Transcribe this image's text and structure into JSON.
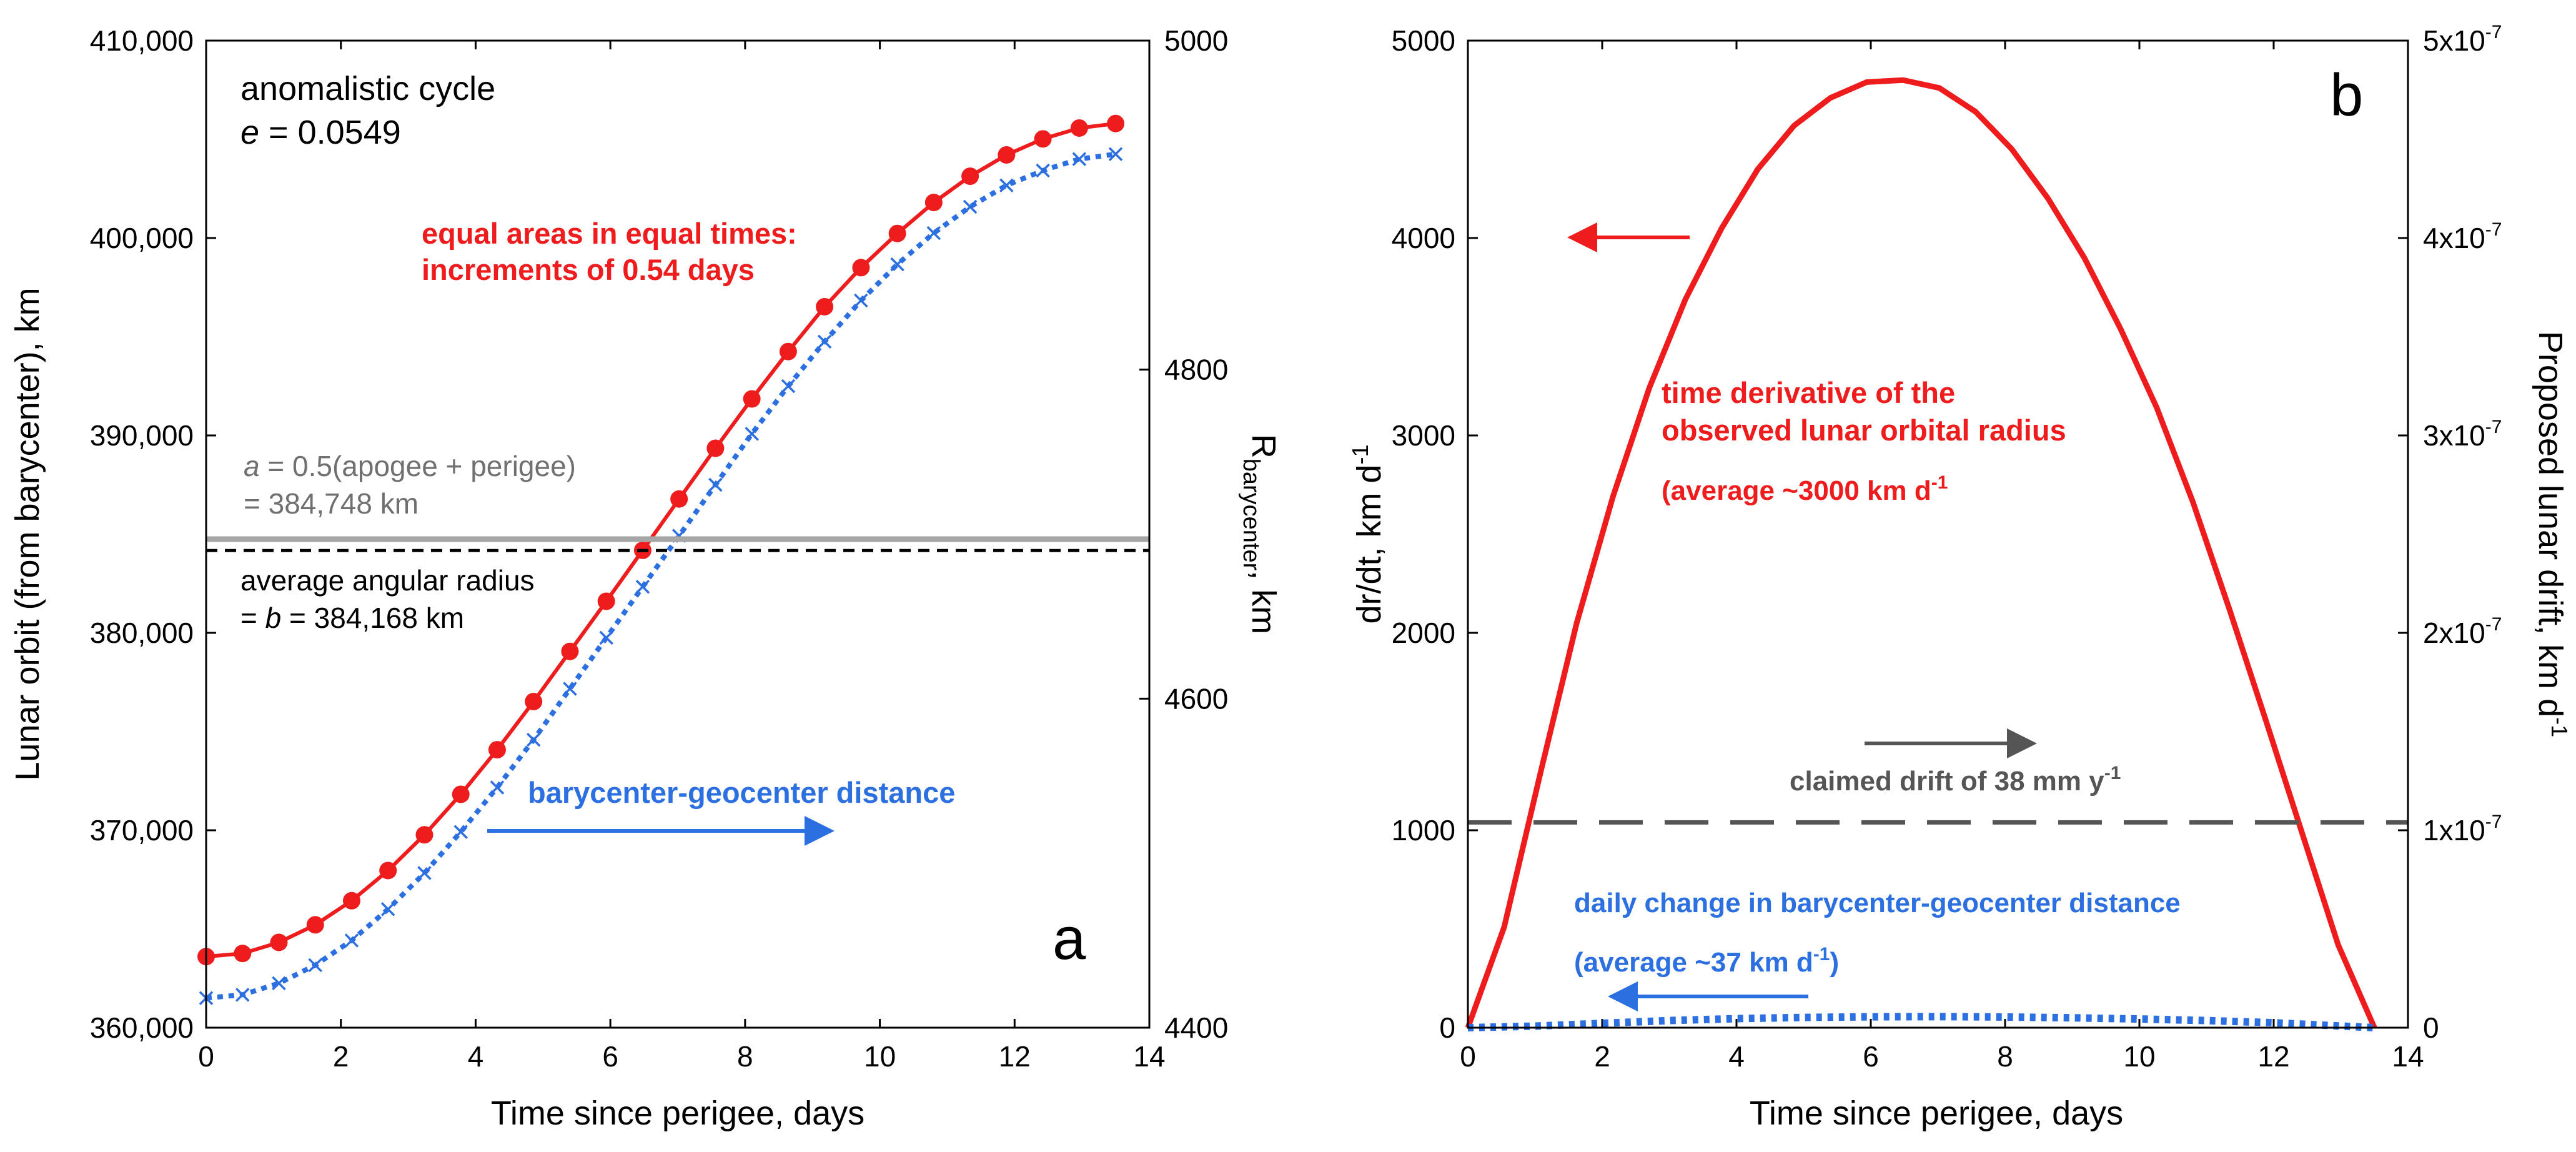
{
  "colors": {
    "red": "#ee1c1c",
    "blue": "#2b6fe0",
    "gray_line": "#a6a6a6",
    "gray_text": "#707070",
    "dark_gray": "#555555",
    "black": "#000000"
  },
  "chart_data": [
    {
      "panel": "a",
      "type": "line",
      "panel_label": "a",
      "xlabel": "Time since perigee, days",
      "ylabel": "Lunar orbit (from barycenter), km",
      "y2label_main": "R",
      "y2label_sub": "barycenter",
      "y2label_tail": ", km",
      "xlim": [
        0,
        14
      ],
      "ylim": [
        360000,
        410000
      ],
      "y2lim": [
        4400,
        5000
      ],
      "x_ticks": [
        0,
        2,
        4,
        6,
        8,
        10,
        12,
        14
      ],
      "x_tick_labels": [
        "0",
        "2",
        "4",
        "6",
        "8",
        "10",
        "12",
        "14"
      ],
      "y_ticks": [
        360000,
        370000,
        380000,
        390000,
        400000,
        410000
      ],
      "y_tick_labels": [
        "360,000",
        "370,000",
        "380,000",
        "390,000",
        "400,000",
        "410,000"
      ],
      "y2_ticks": [
        4400,
        4600,
        4800,
        5000
      ],
      "y2_tick_labels": [
        "4400",
        "4600",
        "4800",
        "5000"
      ],
      "series": [
        {
          "name": "Lunar orbit (equal areas in equal times)",
          "axis": "left",
          "color": "#ee1c1c",
          "style": "line+dots",
          "x": [
            0,
            0.54,
            1.08,
            1.62,
            2.16,
            2.7,
            3.24,
            3.78,
            4.32,
            4.86,
            5.4,
            5.94,
            6.48,
            7.02,
            7.56,
            8.1,
            8.64,
            9.18,
            9.72,
            10.26,
            10.8,
            11.34,
            11.88,
            12.42,
            12.96,
            13.5
          ],
          "values": [
            363600,
            363760,
            364320,
            365210,
            366430,
            367960,
            369770,
            371820,
            374080,
            376520,
            379060,
            381600,
            384180,
            386780,
            389350,
            391850,
            394250,
            396520,
            398500,
            400230,
            401800,
            403130,
            404210,
            405020,
            405570,
            405800
          ]
        },
        {
          "name": "barycenter-geocenter distance",
          "axis": "right",
          "color": "#2b6fe0",
          "style": "dotted+crosses",
          "x": [
            0,
            0.54,
            1.08,
            1.62,
            2.16,
            2.7,
            3.24,
            3.78,
            4.32,
            4.86,
            5.4,
            5.94,
            6.48,
            7.02,
            7.56,
            8.1,
            8.64,
            9.18,
            9.72,
            10.26,
            10.8,
            11.34,
            11.88,
            12.42,
            12.96,
            13.5
          ],
          "values": [
            4418,
            4420,
            4427,
            4438,
            4453,
            4472,
            4494,
            4519,
            4546,
            4575,
            4606,
            4637,
            4668,
            4699,
            4730,
            4761,
            4790,
            4817,
            4842,
            4864,
            4883,
            4899,
            4912,
            4921,
            4928,
            4931
          ]
        },
        {
          "name": "a = 0.5(apogee + perigee)",
          "axis": "left",
          "color": "#a6a6a6",
          "style": "hline",
          "values": [
            384748
          ]
        },
        {
          "name": "average angular radius",
          "axis": "left",
          "color": "#000000",
          "style": "hline-dashed",
          "values": [
            384168
          ]
        }
      ],
      "annotations": {
        "cycle_title": "anomalistic cycle",
        "ecc_symbol": "e",
        "ecc_value": " = 0.0549",
        "equal_areas_line1": "equal areas in equal times:",
        "equal_areas_line2": "increments of 0.54 days",
        "a_symbol": "a",
        "a_formula": " = 0.5(apogee + perigee)",
        "a_value": "= 384,748 km",
        "avg_radius_line1": "average angular radius",
        "avg_radius_prefix": "= ",
        "b_symbol": "b",
        "avg_radius_value": " = 384,168 km",
        "bary_geo_label": "barycenter-geocenter distance"
      }
    },
    {
      "panel": "b",
      "type": "line",
      "panel_label": "b",
      "xlabel": "Time since perigee, days",
      "ylabel": "dr/dt, km d",
      "ylabel_sup": "-1",
      "y2label": "Proposed lunar drift, km d",
      "y2label_sup": "-1",
      "xlim": [
        0,
        14
      ],
      "ylim": [
        0,
        5000
      ],
      "y2lim": [
        0,
        5e-07
      ],
      "x_ticks": [
        0,
        2,
        4,
        6,
        8,
        10,
        12,
        14
      ],
      "x_tick_labels": [
        "0",
        "2",
        "4",
        "6",
        "8",
        "10",
        "12",
        "14"
      ],
      "y_ticks": [
        0,
        1000,
        2000,
        3000,
        4000,
        5000
      ],
      "y_tick_labels": [
        "0",
        "1000",
        "2000",
        "3000",
        "4000",
        "5000"
      ],
      "y2_ticks": [
        0,
        1e-07,
        2e-07,
        3e-07,
        4e-07,
        5e-07
      ],
      "y2_tick_labels": [
        "0",
        "1x10",
        "2x10",
        "3x10",
        "4x10",
        "5x10"
      ],
      "y2_tick_sup": "-7",
      "series": [
        {
          "name": "time derivative of the observed lunar orbital radius",
          "axis": "left",
          "color": "#ee1c1c",
          "style": "line",
          "x": [
            0,
            0.54,
            1.08,
            1.62,
            2.16,
            2.7,
            3.24,
            3.78,
            4.32,
            4.86,
            5.4,
            5.94,
            6.48,
            7.02,
            7.56,
            8.1,
            8.64,
            9.18,
            9.72,
            10.26,
            10.8,
            11.34,
            11.88,
            12.42,
            12.96,
            13.5
          ],
          "values": [
            0,
            510,
            1290,
            2050,
            2690,
            3240,
            3690,
            4050,
            4350,
            4570,
            4710,
            4790,
            4800,
            4760,
            4640,
            4450,
            4200,
            3900,
            3540,
            3140,
            2660,
            2120,
            1560,
            990,
            420,
            0
          ]
        },
        {
          "name": "daily change in barycenter-geocenter distance",
          "axis": "left",
          "color": "#2b6fe0",
          "style": "dotted",
          "x": [
            0,
            1,
            2,
            3,
            4,
            5,
            6,
            7,
            8,
            9,
            10,
            11,
            12,
            13.5
          ],
          "values": [
            0,
            8,
            22,
            36,
            46,
            52,
            55,
            56,
            54,
            50,
            44,
            36,
            25,
            0
          ]
        },
        {
          "name": "claimed drift of 38 mm y-1",
          "axis": "right",
          "color": "#555555",
          "style": "hline-dashed",
          "values": [
            1.04e-07
          ]
        }
      ],
      "annotations": {
        "red_line1": "time derivative of the",
        "red_line2": "observed lunar orbital radius",
        "red_avg_prefix": "(average ~3000 km d",
        "red_avg_sup": "-1",
        "claimed_prefix": "claimed drift of 38 mm y",
        "claimed_sup": "-1",
        "blue_line1": "daily change in barycenter-geocenter distance",
        "blue_avg_prefix": "(average ~37 km d",
        "blue_avg_sup": "-1",
        "blue_avg_suffix": ")"
      }
    }
  ]
}
